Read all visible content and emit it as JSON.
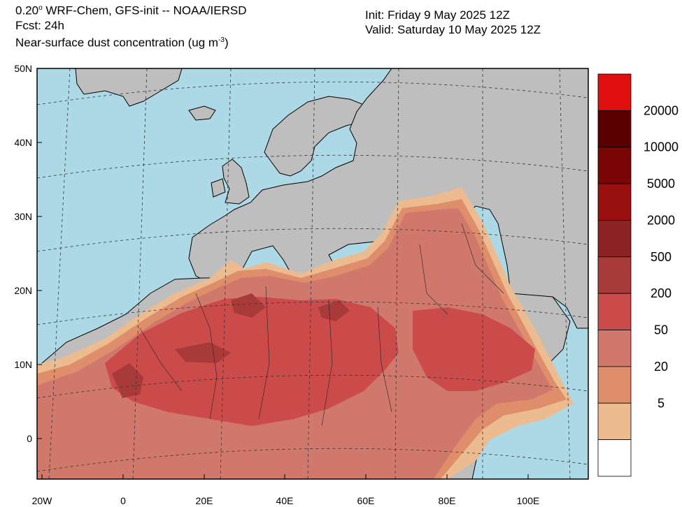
{
  "header": {
    "line1_prefix": "0.20",
    "line1_sup": "o",
    "line1_rest": " WRF-Chem, GFS-init -- NOAA/IERSD",
    "line2": "Fcst: 24h",
    "line3_prefix": "Near-surface dust concentration (ug m",
    "line3_sup": "-3",
    "line3_suffix": ")",
    "init": "Init: Friday 9 May 2025  12Z",
    "valid": "Valid: Saturday 10 May 2025  12Z"
  },
  "map": {
    "lat_ticks": [
      "50N",
      "40N",
      "30N",
      "20N",
      "10N",
      "0"
    ],
    "lon_ticks": [
      "20W",
      "0",
      "20E",
      "40E",
      "60E",
      "80E",
      "100E"
    ],
    "ocean_color": "#add8e6",
    "land_color": "#bebebe"
  },
  "colorbar": {
    "labels": [
      "20000",
      "10000",
      "5000",
      "2000",
      "500",
      "200",
      "50",
      "20",
      "5"
    ],
    "colors": [
      "#e01010",
      "#5a0000",
      "#7a0505",
      "#9a0f0f",
      "#8c2323",
      "#a83a3a",
      "#cb4b4b",
      "#d1786c",
      "#de8e6b",
      "#ecbb8f",
      "#ffffff"
    ]
  }
}
